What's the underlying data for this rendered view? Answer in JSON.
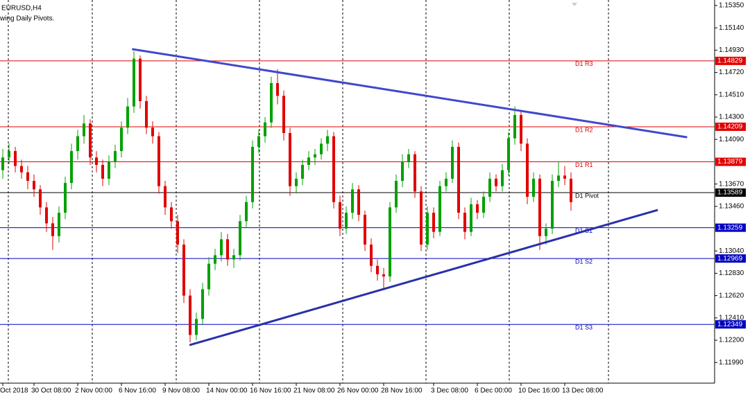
{
  "chart_data": {
    "type": "candlestick",
    "title": "EURUSD,H4",
    "subtitle": "wing Daily Pivots.",
    "ylim": [
      1.11796,
      1.15402
    ],
    "yticks": [
      {
        "value": 1.1535,
        "label": "1.15350"
      },
      {
        "value": 1.1514,
        "label": "1.15140"
      },
      {
        "value": 1.1493,
        "label": "1.14930"
      },
      {
        "value": 1.1472,
        "label": "1.14720"
      },
      {
        "value": 1.1451,
        "label": "1.14510"
      },
      {
        "value": 1.143,
        "label": "1.14300"
      },
      {
        "value": 1.1409,
        "label": "1.14090"
      },
      {
        "value": 1.1367,
        "label": "1.13670"
      },
      {
        "value": 1.1346,
        "label": "1.13460"
      },
      {
        "value": 1.1304,
        "label": "1.13040"
      },
      {
        "value": 1.1283,
        "label": "1.12830"
      },
      {
        "value": 1.1262,
        "label": "1.12620"
      },
      {
        "value": 1.1241,
        "label": "1.12410"
      },
      {
        "value": 1.122,
        "label": "1.12200"
      },
      {
        "value": 1.1199,
        "label": "1.11990"
      }
    ],
    "categories": [
      "Oct 2018",
      null,
      null,
      null,
      null,
      "30 Oct 08:00",
      null,
      null,
      null,
      null,
      null,
      null,
      "2 Nov 00:00",
      null,
      null,
      null,
      null,
      null,
      null,
      "6 Nov 16:00",
      null,
      null,
      null,
      null,
      null,
      null,
      "9 Nov 08:00",
      null,
      null,
      null,
      null,
      null,
      null,
      "14 Nov 00:00",
      null,
      null,
      null,
      null,
      null,
      null,
      "16 Nov 16:00",
      null,
      null,
      null,
      null,
      null,
      null,
      "21 Nov 08:00",
      null,
      null,
      null,
      null,
      null,
      null,
      "26 Nov 00:00",
      null,
      null,
      null,
      null,
      null,
      null,
      "28 Nov 16:00",
      null,
      null,
      null,
      null,
      null,
      null,
      null,
      "3 Dec 08:00",
      null,
      null,
      null,
      null,
      null,
      null,
      "6 Dec 00:00",
      null,
      null,
      null,
      null,
      null,
      null,
      "10 Dec 16:00",
      null,
      null,
      null,
      null,
      null,
      null,
      "13 Dec 08:00",
      null
    ],
    "up_color": "#00a000",
    "down_color": "#e00000",
    "candles": [
      [
        1.138,
        1.14,
        1.1372,
        1.1392
      ],
      [
        1.1392,
        1.1405,
        1.1386,
        1.1398
      ],
      [
        1.1398,
        1.1402,
        1.1378,
        1.1384
      ],
      [
        1.1384,
        1.139,
        1.1372,
        1.1378
      ],
      [
        1.1378,
        1.1384,
        1.1362,
        1.137
      ],
      [
        1.137,
        1.1376,
        1.1355,
        1.1362
      ],
      [
        1.1362,
        1.1366,
        1.1338,
        1.1345
      ],
      [
        1.1345,
        1.135,
        1.1322,
        1.133
      ],
      [
        1.133,
        1.1336,
        1.1305,
        1.1318
      ],
      [
        1.1318,
        1.1346,
        1.1312,
        1.134
      ],
      [
        1.134,
        1.1374,
        1.1334,
        1.1368
      ],
      [
        1.1368,
        1.1405,
        1.1362,
        1.1398
      ],
      [
        1.1398,
        1.1418,
        1.139,
        1.1412
      ],
      [
        1.1412,
        1.1432,
        1.1405,
        1.1424
      ],
      [
        1.1424,
        1.1428,
        1.1385,
        1.1392
      ],
      [
        1.1392,
        1.1398,
        1.1378,
        1.1385
      ],
      [
        1.1385,
        1.139,
        1.1365,
        1.1372
      ],
      [
        1.1372,
        1.1394,
        1.1366,
        1.1388
      ],
      [
        1.1388,
        1.1404,
        1.1382,
        1.1398
      ],
      [
        1.1398,
        1.1426,
        1.1392,
        1.142
      ],
      [
        1.142,
        1.1448,
        1.1414,
        1.144
      ],
      [
        1.144,
        1.1492,
        1.1434,
        1.1485
      ],
      [
        1.1485,
        1.1488,
        1.1438,
        1.1445
      ],
      [
        1.1445,
        1.145,
        1.1414,
        1.142
      ],
      [
        1.142,
        1.1426,
        1.1405,
        1.1412
      ],
      [
        1.1412,
        1.1416,
        1.1358,
        1.1365
      ],
      [
        1.1365,
        1.137,
        1.1338,
        1.1345
      ],
      [
        1.1345,
        1.135,
        1.1325,
        1.1332
      ],
      [
        1.1332,
        1.1338,
        1.1302,
        1.131
      ],
      [
        1.131,
        1.1315,
        1.1255,
        1.1262
      ],
      [
        1.1262,
        1.1268,
        1.1218,
        1.1225
      ],
      [
        1.1225,
        1.1246,
        1.122,
        1.124
      ],
      [
        1.124,
        1.1274,
        1.1235,
        1.1268
      ],
      [
        1.1268,
        1.1298,
        1.1262,
        1.1292
      ],
      [
        1.1292,
        1.1306,
        1.1286,
        1.13
      ],
      [
        1.13,
        1.1322,
        1.1294,
        1.1315
      ],
      [
        1.1315,
        1.132,
        1.129,
        1.1296
      ],
      [
        1.1296,
        1.1306,
        1.1288,
        1.13
      ],
      [
        1.13,
        1.1338,
        1.1295,
        1.1332
      ],
      [
        1.1332,
        1.1356,
        1.1326,
        1.135
      ],
      [
        1.135,
        1.1408,
        1.1344,
        1.1402
      ],
      [
        1.1402,
        1.1418,
        1.1396,
        1.1412
      ],
      [
        1.1412,
        1.143,
        1.1406,
        1.1425
      ],
      [
        1.1425,
        1.1468,
        1.142,
        1.1462
      ],
      [
        1.1462,
        1.1475,
        1.1442,
        1.145
      ],
      [
        1.145,
        1.1455,
        1.1408,
        1.1415
      ],
      [
        1.1415,
        1.142,
        1.1356,
        1.1365
      ],
      [
        1.1365,
        1.1378,
        1.1358,
        1.1372
      ],
      [
        1.1372,
        1.139,
        1.1366,
        1.1385
      ],
      [
        1.1385,
        1.1398,
        1.138,
        1.1392
      ],
      [
        1.1392,
        1.14,
        1.1385,
        1.1395
      ],
      [
        1.1395,
        1.141,
        1.139,
        1.1405
      ],
      [
        1.1405,
        1.1418,
        1.1398,
        1.1412
      ],
      [
        1.1412,
        1.1416,
        1.1344,
        1.135
      ],
      [
        1.135,
        1.1356,
        1.1318,
        1.1325
      ],
      [
        1.1325,
        1.1346,
        1.132,
        1.134
      ],
      [
        1.134,
        1.1368,
        1.1334,
        1.1362
      ],
      [
        1.1362,
        1.1366,
        1.1332,
        1.1338
      ],
      [
        1.1338,
        1.1342,
        1.1304,
        1.131
      ],
      [
        1.131,
        1.1316,
        1.1284,
        1.129
      ],
      [
        1.129,
        1.1296,
        1.1276,
        1.1282
      ],
      [
        1.1282,
        1.1288,
        1.1268,
        1.128
      ],
      [
        1.128,
        1.135,
        1.1275,
        1.1345
      ],
      [
        1.1345,
        1.1376,
        1.134,
        1.137
      ],
      [
        1.137,
        1.1395,
        1.1364,
        1.1388
      ],
      [
        1.1388,
        1.14,
        1.1382,
        1.1395
      ],
      [
        1.1395,
        1.1398,
        1.1354,
        1.136
      ],
      [
        1.136,
        1.1365,
        1.1304,
        1.131
      ],
      [
        1.131,
        1.1346,
        1.1305,
        1.134
      ],
      [
        1.134,
        1.1345,
        1.1316,
        1.1322
      ],
      [
        1.1322,
        1.137,
        1.1318,
        1.1365
      ],
      [
        1.1365,
        1.1378,
        1.136,
        1.1372
      ],
      [
        1.1372,
        1.1408,
        1.1368,
        1.1402
      ],
      [
        1.1402,
        1.1406,
        1.1334,
        1.134
      ],
      [
        1.134,
        1.1345,
        1.1315,
        1.1322
      ],
      [
        1.1322,
        1.1354,
        1.1318,
        1.1348
      ],
      [
        1.1348,
        1.1352,
        1.1334,
        1.134
      ],
      [
        1.134,
        1.136,
        1.1335,
        1.1355
      ],
      [
        1.1355,
        1.1378,
        1.135,
        1.1372
      ],
      [
        1.1372,
        1.1376,
        1.136,
        1.1365
      ],
      [
        1.1365,
        1.1386,
        1.136,
        1.138
      ],
      [
        1.138,
        1.1416,
        1.1375,
        1.141
      ],
      [
        1.141,
        1.144,
        1.1404,
        1.1432
      ],
      [
        1.1432,
        1.1436,
        1.1398,
        1.1405
      ],
      [
        1.1405,
        1.141,
        1.1348,
        1.1355
      ],
      [
        1.1355,
        1.1378,
        1.135,
        1.1372
      ],
      [
        1.1372,
        1.1376,
        1.1305,
        1.1318
      ],
      [
        1.1318,
        1.133,
        1.131,
        1.1325
      ],
      [
        1.1325,
        1.1376,
        1.132,
        1.137
      ],
      [
        1.137,
        1.1388,
        1.1364,
        1.1375
      ],
      [
        1.1375,
        1.1384,
        1.1366,
        1.1372
      ],
      [
        1.1372,
        1.1378,
        1.1342,
        1.135
      ]
    ],
    "pivots": [
      {
        "name": "D1 R3",
        "value": 1.14829,
        "color": "#e00000"
      },
      {
        "name": "D1 R2",
        "value": 1.14209,
        "color": "#e00000"
      },
      {
        "name": "D1 R1",
        "value": 1.13879,
        "color": "#e00000"
      },
      {
        "name": "D1 Pivot",
        "value": 1.13589,
        "color": "#000000"
      },
      {
        "name": "D1 S1",
        "value": 1.13259,
        "color": "#0000c0"
      },
      {
        "name": "D1 S2",
        "value": 1.12969,
        "color": "#0000c0"
      },
      {
        "name": "D1 S3",
        "value": 1.12349,
        "color": "#0000c0"
      }
    ],
    "trendlines": [
      {
        "x": [
          20.7,
          109.6
        ],
        "y": [
          1.1494,
          1.1411
        ],
        "color": "#3f48cc"
      },
      {
        "x": [
          29.9,
          104.9
        ],
        "y": [
          1.12154,
          1.13426
        ],
        "color": "#2a2fa8"
      }
    ]
  }
}
